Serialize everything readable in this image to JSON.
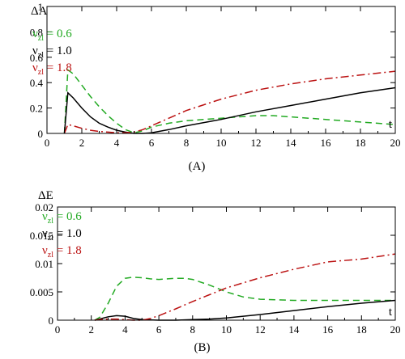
{
  "chart_data": [
    {
      "type": "line",
      "caption": "(A)",
      "ylabel": "ΔA",
      "xlabel": "t",
      "xlim": [
        0,
        20
      ],
      "ylim": [
        0,
        1
      ],
      "xticks": [
        0,
        2,
        4,
        6,
        8,
        10,
        12,
        14,
        16,
        18,
        20
      ],
      "yticks": [
        0,
        0.2,
        0.4,
        0.6,
        0.8,
        1
      ],
      "ytick_labels": [
        "0",
        "0.2",
        "0.4",
        "0.6",
        "0.8",
        "1"
      ],
      "grid": false,
      "legend_position": "top-left",
      "series": [
        {
          "name": "ν_zl = 0.6",
          "legend_main": "ν",
          "legend_sub": "zl",
          "legend_rest": " = 0.6",
          "color": "#22aa22",
          "dash": "8,5",
          "x": [
            1.0,
            1.2,
            1.5,
            2.0,
            2.5,
            3.0,
            3.5,
            4.0,
            4.5,
            5.0,
            5.5,
            6.0,
            7.0,
            8.0,
            10.0,
            12.0,
            13.0,
            14.0,
            16.0,
            18.0,
            20.0
          ],
          "y": [
            0.0,
            0.5,
            0.47,
            0.38,
            0.29,
            0.21,
            0.14,
            0.08,
            0.03,
            0.005,
            0.02,
            0.05,
            0.08,
            0.1,
            0.12,
            0.14,
            0.14,
            0.13,
            0.11,
            0.09,
            0.07
          ]
        },
        {
          "name": "ν_zl = 1.0",
          "legend_main": "ν",
          "legend_sub": "zl",
          "legend_rest": " = 1.0",
          "color": "#000000",
          "dash": "",
          "x": [
            1.0,
            1.2,
            1.5,
            2.0,
            2.5,
            3.0,
            3.5,
            4.0,
            4.5,
            5.0,
            5.5,
            6.0,
            7.0,
            8.0,
            10.0,
            12.0,
            14.0,
            16.0,
            18.0,
            20.0
          ],
          "y": [
            0.0,
            0.32,
            0.28,
            0.2,
            0.13,
            0.08,
            0.05,
            0.025,
            0.01,
            0.0,
            0.0,
            0.005,
            0.03,
            0.06,
            0.11,
            0.17,
            0.22,
            0.27,
            0.32,
            0.36
          ]
        },
        {
          "name": "ν_zl = 1.8",
          "legend_main": "ν",
          "legend_sub": "zl",
          "legend_rest": " = 1.8",
          "color": "#bb1111",
          "dash": "10,4,2,4",
          "x": [
            1.0,
            1.2,
            1.5,
            2.0,
            2.5,
            3.0,
            3.5,
            4.0,
            4.5,
            5.0,
            5.5,
            6.0,
            7.0,
            8.0,
            10.0,
            12.0,
            14.0,
            16.0,
            18.0,
            20.0
          ],
          "y": [
            0.0,
            0.07,
            0.06,
            0.04,
            0.025,
            0.015,
            0.01,
            0.005,
            0.005,
            0.01,
            0.03,
            0.06,
            0.12,
            0.18,
            0.27,
            0.34,
            0.39,
            0.43,
            0.46,
            0.49
          ]
        }
      ]
    },
    {
      "type": "line",
      "caption": "(B)",
      "ylabel": "ΔE",
      "xlabel": "t",
      "xlim": [
        0,
        20
      ],
      "ylim": [
        0,
        0.02
      ],
      "xticks": [
        0,
        2,
        4,
        6,
        8,
        10,
        12,
        14,
        16,
        18,
        20
      ],
      "yticks": [
        0,
        0.005,
        0.01,
        0.015,
        0.02
      ],
      "ytick_labels": [
        "0",
        "0.005",
        "0.01",
        "0.015",
        "0.02"
      ],
      "grid": false,
      "legend_position": "top-left",
      "series": [
        {
          "name": "ν_zl = 0.6",
          "legend_main": "ν",
          "legend_sub": "zl",
          "legend_rest": " = 0.6",
          "color": "#22aa22",
          "dash": "8,5",
          "x": [
            2.2,
            2.5,
            3.0,
            3.5,
            4.0,
            4.5,
            5.0,
            5.5,
            6.0,
            6.5,
            7.0,
            7.5,
            8.0,
            9.0,
            10.0,
            11.0,
            12.0,
            13.0,
            14.0,
            16.0,
            18.0,
            20.0
          ],
          "y": [
            0.0,
            0.0005,
            0.003,
            0.006,
            0.0074,
            0.0076,
            0.0075,
            0.0073,
            0.0072,
            0.0073,
            0.0074,
            0.0074,
            0.0072,
            0.0062,
            0.005,
            0.0041,
            0.0037,
            0.0036,
            0.0035,
            0.0035,
            0.0035,
            0.0035
          ]
        },
        {
          "name": "ν_zl = 1.0",
          "legend_main": "ν",
          "legend_sub": "zl",
          "legend_rest": " = 1.0",
          "color": "#000000",
          "dash": "",
          "x": [
            2.2,
            2.5,
            3.0,
            3.5,
            4.0,
            4.5,
            5.0,
            6.0,
            7.0,
            8.0,
            9.0,
            10.0,
            12.0,
            14.0,
            16.0,
            18.0,
            20.0
          ],
          "y": [
            0.0,
            0.0002,
            0.0006,
            0.0008,
            0.0007,
            0.0003,
            0.0001,
            0.0,
            0.0,
            0.0001,
            0.0002,
            0.0004,
            0.001,
            0.0017,
            0.0024,
            0.003,
            0.0035
          ]
        },
        {
          "name": "ν_zl = 1.8",
          "legend_main": "ν",
          "legend_sub": "zl",
          "legend_rest": " = 1.8",
          "color": "#bb1111",
          "dash": "10,4,2,4",
          "x": [
            2.2,
            2.5,
            3.0,
            3.5,
            4.0,
            4.5,
            5.0,
            5.5,
            6.0,
            7.0,
            8.0,
            9.0,
            10.0,
            12.0,
            14.0,
            16.0,
            18.0,
            20.0
          ],
          "y": [
            0.0,
            0.0001,
            0.0002,
            0.0002,
            0.0001,
            0.0,
            0.0,
            0.0003,
            0.0008,
            0.002,
            0.0033,
            0.0045,
            0.0057,
            0.0075,
            0.009,
            0.0103,
            0.0108,
            0.0117
          ]
        }
      ]
    }
  ]
}
